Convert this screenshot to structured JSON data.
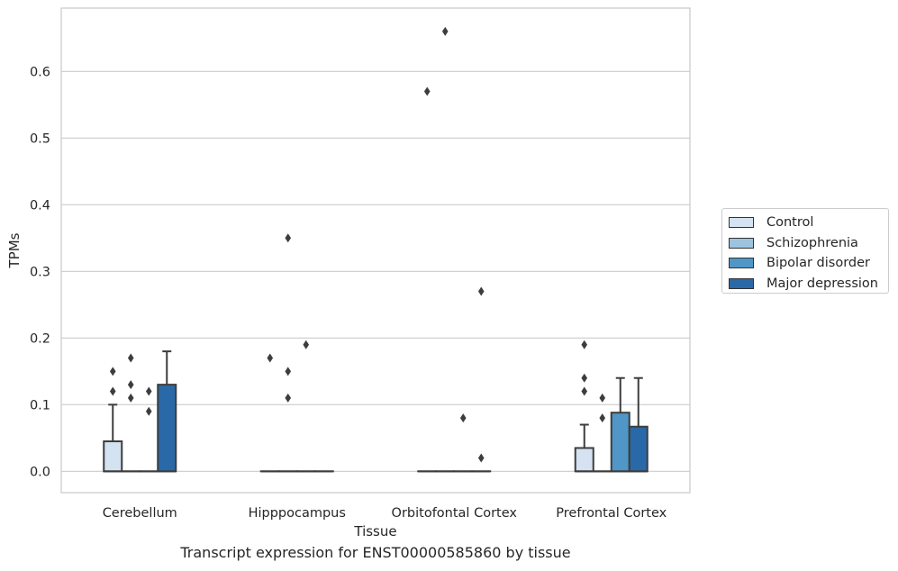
{
  "chart_data": {
    "type": "box",
    "title": "",
    "caption": "Transcript expression for ENST00000585860 by tissue",
    "xlabel": "Tissue",
    "ylabel": "TPMs",
    "ylim": [
      -0.032,
      0.695
    ],
    "yticks": [
      "0.0",
      "0.1",
      "0.2",
      "0.3",
      "0.4",
      "0.5",
      "0.6"
    ],
    "grid": true,
    "legend_position": "right",
    "categories": [
      "Cerebellum",
      "Hipppocampus",
      "Orbitofontal Cortex",
      "Prefrontal Cortex"
    ],
    "series": [
      {
        "name": "Control",
        "color": "#d4e2f1",
        "boxes": [
          {
            "q1": 0.0,
            "median": 0.0,
            "q3": 0.045,
            "whisker_low": 0.0,
            "whisker_high": 0.1,
            "outliers": [
              0.12,
              0.15
            ]
          },
          {
            "q1": 0.0,
            "median": 0.0,
            "q3": 0.0,
            "whisker_low": 0.0,
            "whisker_high": 0.0,
            "outliers": [
              0.17
            ]
          },
          {
            "q1": 0.0,
            "median": 0.0,
            "q3": 0.0,
            "whisker_low": 0.0,
            "whisker_high": 0.0,
            "outliers": [
              0.57
            ]
          },
          {
            "q1": 0.0,
            "median": 0.0,
            "q3": 0.035,
            "whisker_low": 0.0,
            "whisker_high": 0.07,
            "outliers": [
              0.12,
              0.14,
              0.19
            ]
          }
        ]
      },
      {
        "name": "Schizophrenia",
        "color": "#9dc3de",
        "boxes": [
          {
            "q1": 0.0,
            "median": 0.0,
            "q3": 0.0,
            "whisker_low": 0.0,
            "whisker_high": 0.0,
            "outliers": [
              0.11,
              0.13,
              0.17
            ]
          },
          {
            "q1": 0.0,
            "median": 0.0,
            "q3": 0.0,
            "whisker_low": 0.0,
            "whisker_high": 0.0,
            "outliers": [
              0.11,
              0.15,
              0.35
            ]
          },
          {
            "q1": 0.0,
            "median": 0.0,
            "q3": 0.0,
            "whisker_low": 0.0,
            "whisker_high": 0.0,
            "outliers": [
              0.66
            ]
          },
          {
            "q1": 0.0,
            "median": 0.0,
            "q3": 0.0,
            "whisker_low": 0.0,
            "whisker_high": 0.0,
            "outliers": [
              0.08,
              0.11
            ]
          }
        ]
      },
      {
        "name": "Bipolar disorder",
        "color": "#5096c6",
        "boxes": [
          {
            "q1": 0.0,
            "median": 0.0,
            "q3": 0.0,
            "whisker_low": 0.0,
            "whisker_high": 0.0,
            "outliers": [
              0.09,
              0.12
            ]
          },
          {
            "q1": 0.0,
            "median": 0.0,
            "q3": 0.0,
            "whisker_low": 0.0,
            "whisker_high": 0.0,
            "outliers": [
              0.19
            ]
          },
          {
            "q1": 0.0,
            "median": 0.0,
            "q3": 0.0,
            "whisker_low": 0.0,
            "whisker_high": 0.0,
            "outliers": [
              0.08
            ]
          },
          {
            "q1": 0.0,
            "median": 0.0,
            "q3": 0.088,
            "whisker_low": 0.0,
            "whisker_high": 0.14,
            "outliers": []
          }
        ]
      },
      {
        "name": "Major depression",
        "color": "#2a69a8",
        "boxes": [
          {
            "q1": 0.0,
            "median": 0.0,
            "q3": 0.13,
            "whisker_low": 0.0,
            "whisker_high": 0.18,
            "outliers": []
          },
          {
            "q1": 0.0,
            "median": 0.0,
            "q3": 0.0,
            "whisker_low": 0.0,
            "whisker_high": 0.0,
            "outliers": []
          },
          {
            "q1": 0.0,
            "median": 0.0,
            "q3": 0.0,
            "whisker_low": 0.0,
            "whisker_high": 0.0,
            "outliers": [
              0.02,
              0.27
            ]
          },
          {
            "q1": 0.0,
            "median": 0.0,
            "q3": 0.067,
            "whisker_low": 0.0,
            "whisker_high": 0.14,
            "outliers": []
          }
        ]
      }
    ]
  }
}
